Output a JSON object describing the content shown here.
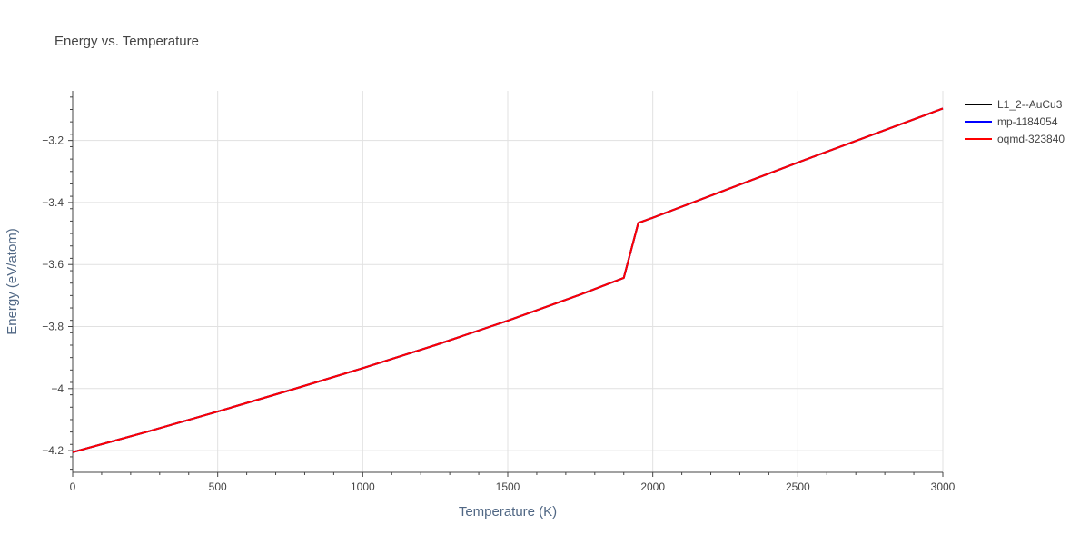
{
  "chart_data": {
    "type": "line",
    "title": "Energy vs. Temperature",
    "xlabel": "Temperature (K)",
    "ylabel": "Energy (eV/atom)",
    "xlim": [
      0,
      3000
    ],
    "ylim": [
      -4.27,
      -3.04
    ],
    "x_ticks": [
      0,
      500,
      1000,
      1500,
      2000,
      2500,
      3000
    ],
    "y_ticks": [
      -4.2,
      -4.0,
      -3.8,
      -3.6,
      -3.4,
      -3.2
    ],
    "y_tick_labels": [
      "−4.2",
      "−4",
      "−3.8",
      "−3.6",
      "−3.4",
      "−3.2"
    ],
    "grid": true,
    "legend_position": "top-right",
    "series": [
      {
        "name": "L1_2--AuCu3",
        "color": "#000000",
        "x": [
          0,
          250,
          500,
          750,
          1000,
          1250,
          1500,
          1750,
          1900,
          1950,
          2000,
          2250,
          2500,
          2750,
          3000
        ],
        "y": [
          -4.205,
          -4.141,
          -4.074,
          -4.005,
          -3.934,
          -3.86,
          -3.781,
          -3.697,
          -3.643,
          -3.466,
          -3.449,
          -3.36,
          -3.271,
          -3.184,
          -3.097
        ]
      },
      {
        "name": "mp-1184054",
        "color": "#0000ff",
        "x": [
          0,
          250,
          500,
          750,
          1000,
          1250,
          1500,
          1750,
          1900,
          1950,
          2000,
          2250,
          2500,
          2750,
          3000
        ],
        "y": [
          -4.205,
          -4.141,
          -4.074,
          -4.005,
          -3.934,
          -3.86,
          -3.781,
          -3.697,
          -3.643,
          -3.466,
          -3.449,
          -3.36,
          -3.271,
          -3.184,
          -3.097
        ]
      },
      {
        "name": "oqmd-323840",
        "color": "#ff0000",
        "x": [
          0,
          250,
          500,
          750,
          1000,
          1250,
          1500,
          1750,
          1900,
          1950,
          2000,
          2250,
          2500,
          2750,
          3000
        ],
        "y": [
          -4.205,
          -4.141,
          -4.074,
          -4.005,
          -3.934,
          -3.86,
          -3.781,
          -3.697,
          -3.643,
          -3.466,
          -3.449,
          -3.36,
          -3.271,
          -3.184,
          -3.097
        ]
      }
    ]
  }
}
